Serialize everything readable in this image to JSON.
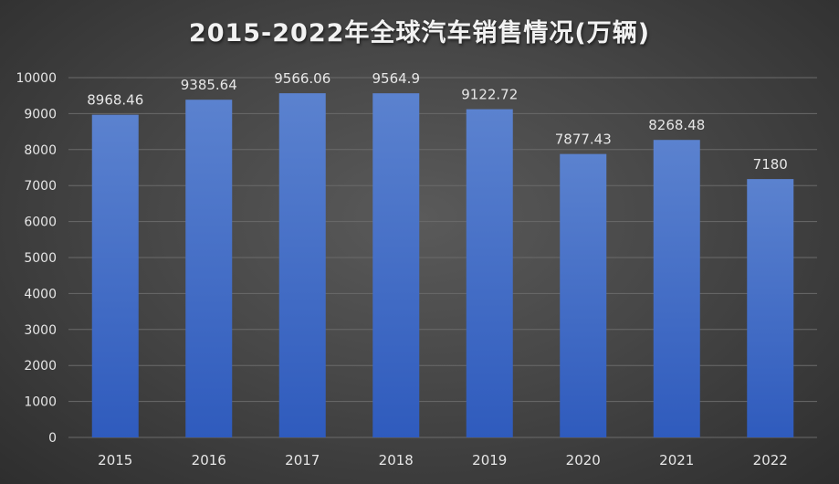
{
  "chart_data": {
    "type": "bar",
    "title": "2015-2022年全球汽车销售情况(万辆)",
    "categories": [
      "2015",
      "2016",
      "2017",
      "2018",
      "2019",
      "2020",
      "2021",
      "2022"
    ],
    "values": [
      8968.46,
      9385.64,
      9566.06,
      9564.9,
      9122.72,
      7877.43,
      8268.48,
      7180
    ],
    "value_labels": [
      "8968.46",
      "9385.64",
      "9566.06",
      "9564.9",
      "9122.72",
      "7877.43",
      "8268.48",
      "7180"
    ],
    "ylim": [
      0,
      10000
    ],
    "yticks": [
      "0",
      "1000",
      "2000",
      "3000",
      "4000",
      "5000",
      "6000",
      "7000",
      "8000",
      "9000",
      "10000"
    ],
    "grid": true,
    "legend": "none",
    "colors": {
      "bar_top": "#5b82cf",
      "bar_bottom": "#2f5bbd",
      "grid": "#6a6a6a",
      "text": "#e6e6e6",
      "title": "#f2f2f2"
    }
  }
}
